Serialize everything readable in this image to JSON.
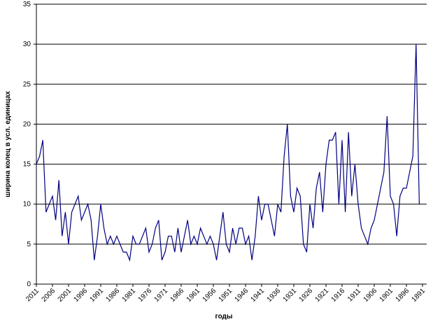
{
  "chart_data": {
    "type": "line",
    "xlabel": "годы",
    "ylabel": "ширина колец в усл. единицах",
    "x": [
      2011,
      2010,
      2009,
      2008,
      2007,
      2006,
      2005,
      2004,
      2003,
      2002,
      2001,
      2000,
      1999,
      1998,
      1997,
      1996,
      1995,
      1994,
      1993,
      1992,
      1991,
      1990,
      1989,
      1988,
      1987,
      1986,
      1985,
      1984,
      1983,
      1982,
      1981,
      1980,
      1979,
      1978,
      1977,
      1976,
      1975,
      1974,
      1973,
      1972,
      1971,
      1970,
      1969,
      1968,
      1967,
      1966,
      1965,
      1964,
      1963,
      1962,
      1961,
      1960,
      1959,
      1958,
      1957,
      1956,
      1955,
      1954,
      1953,
      1952,
      1951,
      1950,
      1949,
      1948,
      1947,
      1946,
      1945,
      1944,
      1943,
      1942,
      1941,
      1940,
      1939,
      1938,
      1937,
      1936,
      1935,
      1934,
      1933,
      1932,
      1931,
      1930,
      1929,
      1928,
      1927,
      1926,
      1925,
      1924,
      1923,
      1922,
      1921,
      1920,
      1919,
      1918,
      1917,
      1916,
      1915,
      1914,
      1913,
      1912,
      1911,
      1910,
      1909,
      1908,
      1907,
      1906,
      1905,
      1904,
      1903,
      1902,
      1901,
      1900,
      1899,
      1898,
      1897,
      1896,
      1895,
      1894,
      1893,
      1892
    ],
    "series": [
      {
        "name": "ширина колец",
        "color": "#000080",
        "values": [
          15,
          16,
          18,
          9,
          10,
          11,
          8,
          13,
          6,
          9,
          5,
          9,
          10,
          11,
          8,
          9,
          10,
          8,
          3,
          6,
          10,
          7,
          5,
          6,
          5,
          6,
          5,
          4,
          4,
          3,
          6,
          5,
          5,
          6,
          7,
          4,
          5,
          7,
          8,
          3,
          4,
          6,
          6,
          4,
          7,
          4,
          6,
          8,
          5,
          6,
          5,
          7,
          6,
          5,
          6,
          5,
          3,
          6,
          9,
          5,
          4,
          7,
          5,
          7,
          7,
          5,
          6,
          3,
          6,
          11,
          8,
          10,
          10,
          8,
          6,
          10,
          9,
          16,
          20,
          11,
          9,
          12,
          11,
          5,
          4,
          10,
          7,
          12,
          14,
          9,
          15,
          18,
          18,
          19,
          10,
          18,
          9,
          19,
          11,
          15,
          10,
          7,
          6,
          5,
          7,
          8,
          10,
          12,
          14,
          21,
          11,
          10,
          6,
          11,
          12,
          12,
          14,
          16,
          30,
          10
        ]
      }
    ],
    "xlim": [
      2011,
      1891
    ],
    "xticks": [
      2011,
      2006,
      2001,
      1996,
      1991,
      1986,
      1981,
      1976,
      1971,
      1966,
      1961,
      1956,
      1951,
      1946,
      1941,
      1936,
      1931,
      1926,
      1921,
      1916,
      1911,
      1906,
      1901,
      1896,
      1891
    ],
    "ylim": [
      0,
      35
    ],
    "yticks": [
      0,
      5,
      10,
      15,
      20,
      25,
      30,
      35
    ],
    "grid": true
  }
}
